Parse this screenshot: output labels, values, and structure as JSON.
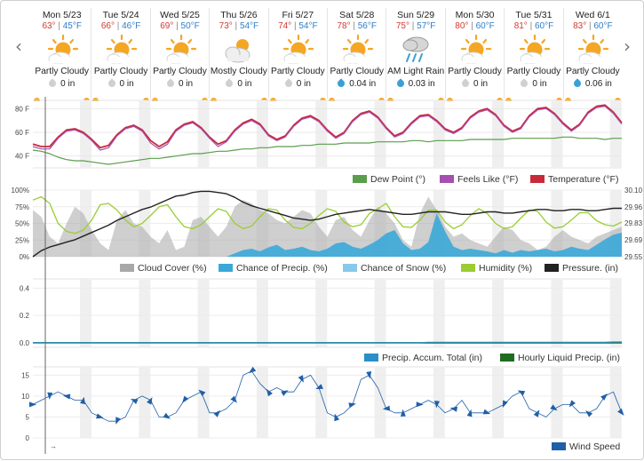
{
  "nav": {
    "prev_icon": "chevron-left-icon",
    "next_icon": "chevron-right-icon",
    "prev_glyph": "‹",
    "next_glyph": "›",
    "time_arrow": "→"
  },
  "days": [
    {
      "date": "Mon 5/23",
      "hi": "63°",
      "lo": "45°F",
      "icon": "partly-cloudy-icon",
      "cond": "Partly Cloudy",
      "precip": "0 in",
      "drop": "grey"
    },
    {
      "date": "Tue 5/24",
      "hi": "66°",
      "lo": "46°F",
      "icon": "partly-cloudy-icon",
      "cond": "Partly Cloudy",
      "precip": "0 in",
      "drop": "grey"
    },
    {
      "date": "Wed 5/25",
      "hi": "69°",
      "lo": "50°F",
      "icon": "partly-cloudy-icon",
      "cond": "Partly Cloudy",
      "precip": "0 in",
      "drop": "grey"
    },
    {
      "date": "Thu 5/26",
      "hi": "73°",
      "lo": "54°F",
      "icon": "mostly-cloudy-icon",
      "cond": "Mostly Cloudy",
      "precip": "0 in",
      "drop": "grey"
    },
    {
      "date": "Fri 5/27",
      "hi": "74°",
      "lo": "54°F",
      "icon": "partly-cloudy-icon",
      "cond": "Partly Cloudy",
      "precip": "0 in",
      "drop": "grey"
    },
    {
      "date": "Sat 5/28",
      "hi": "78°",
      "lo": "56°F",
      "icon": "partly-cloudy-icon",
      "cond": "Partly Cloudy",
      "precip": "0.04 in",
      "drop": "blue"
    },
    {
      "date": "Sun 5/29",
      "hi": "75°",
      "lo": "57°F",
      "icon": "rain-icon",
      "cond": "AM Light Rain",
      "precip": "0.03 in",
      "drop": "blue"
    },
    {
      "date": "Mon 5/30",
      "hi": "80°",
      "lo": "60°F",
      "icon": "partly-cloudy-icon",
      "cond": "Partly Cloudy",
      "precip": "0 in",
      "drop": "grey"
    },
    {
      "date": "Tue 5/31",
      "hi": "81°",
      "lo": "60°F",
      "icon": "partly-cloudy-icon",
      "cond": "Partly Cloudy",
      "precip": "0 in",
      "drop": "grey"
    },
    {
      "date": "Wed 6/1",
      "hi": "83°",
      "lo": "60°F",
      "icon": "partly-cloudy-icon",
      "cond": "Partly Cloudy",
      "precip": "0.06 in",
      "drop": "blue"
    }
  ],
  "colors": {
    "temperature": "#c92a3a",
    "feels_like": "#a64fb0",
    "dew_point": "#5a9e4a",
    "cloud_cover": "#a8a8a8",
    "precip_chance": "#3aa8d8",
    "snow_chance": "#88c8e8",
    "humidity": "#9acd32",
    "pressure": "#222222",
    "precip_total": "#2a8fc8",
    "hourly_liquid": "#1f6b1f",
    "wind": "#1f5fa8",
    "hi": "#d33a2c",
    "lo": "#2e7fc6"
  },
  "chart_data": [
    {
      "type": "line",
      "name": "temperature-panel",
      "yticks": [
        "80 F",
        "60 F",
        "40 F"
      ],
      "ytick_values": [
        80,
        60,
        40
      ],
      "ylim": [
        30,
        87
      ],
      "x_days": 10,
      "series": [
        {
          "name": "Temperature (°F)",
          "color_key": "temperature",
          "values": [
            50,
            48,
            48,
            56,
            62,
            63,
            60,
            54,
            47,
            49,
            58,
            64,
            66,
            62,
            53,
            48,
            52,
            62,
            67,
            69,
            64,
            56,
            50,
            53,
            62,
            68,
            71,
            67,
            58,
            54,
            57,
            66,
            72,
            74,
            70,
            62,
            56,
            60,
            70,
            76,
            78,
            73,
            64,
            57,
            60,
            68,
            74,
            75,
            70,
            63,
            60,
            64,
            73,
            78,
            80,
            75,
            66,
            61,
            64,
            74,
            80,
            81,
            76,
            68,
            62,
            67,
            77,
            82,
            83,
            77,
            68
          ]
        },
        {
          "name": "Feels Like (°F)",
          "color_key": "feels_like",
          "values": [
            48,
            46,
            46,
            55,
            61,
            62,
            59,
            53,
            45,
            47,
            57,
            63,
            65,
            61,
            51,
            46,
            50,
            61,
            66,
            68,
            63,
            55,
            48,
            52,
            61,
            67,
            70,
            66,
            57,
            53,
            56,
            65,
            71,
            73,
            69,
            61,
            55,
            59,
            69,
            75,
            77,
            72,
            63,
            56,
            59,
            67,
            73,
            74,
            69,
            62,
            59,
            63,
            72,
            77,
            79,
            74,
            65,
            60,
            63,
            73,
            79,
            80,
            75,
            67,
            61,
            66,
            76,
            81,
            82,
            76,
            67
          ]
        },
        {
          "name": "Dew Point (°)",
          "color_key": "dew_point",
          "values": [
            45,
            44,
            42,
            39,
            37,
            36,
            36,
            35,
            34,
            33,
            34,
            35,
            36,
            37,
            38,
            38,
            39,
            40,
            41,
            42,
            42,
            43,
            44,
            44,
            45,
            46,
            46,
            47,
            47,
            48,
            48,
            48,
            49,
            49,
            50,
            50,
            50,
            51,
            51,
            51,
            51,
            52,
            52,
            52,
            52,
            53,
            53,
            52,
            53,
            53,
            53,
            53,
            54,
            54,
            54,
            54,
            54,
            55,
            55,
            55,
            55,
            55,
            55,
            56,
            56,
            55,
            55,
            55,
            54,
            55,
            55
          ]
        }
      ],
      "legend": [
        "Dew Point (°)",
        "Feels Like (°F)",
        "Temperature (°F)"
      ]
    },
    {
      "type": "area",
      "name": "sky-panel",
      "yticks_left": [
        "100%",
        "75%",
        "50%",
        "25%",
        "0%"
      ],
      "ytick_left_values": [
        100,
        75,
        50,
        25,
        0
      ],
      "yticks_right": [
        "30.10",
        "29.96",
        "29.83",
        "29.69",
        "29.55"
      ],
      "ytick_right_values": [
        30.1,
        29.96,
        29.83,
        29.69,
        29.55
      ],
      "series": [
        {
          "name": "Cloud Cover (%)",
          "color_key": "cloud_cover",
          "axis": "left",
          "values": [
            70,
            60,
            30,
            20,
            50,
            75,
            65,
            40,
            20,
            10,
            55,
            70,
            50,
            45,
            30,
            20,
            40,
            10,
            15,
            55,
            60,
            45,
            30,
            45,
            75,
            85,
            80,
            70,
            65,
            55,
            50,
            60,
            70,
            65,
            45,
            30,
            55,
            60,
            40,
            30,
            55,
            75,
            65,
            50,
            25,
            15,
            65,
            90,
            70,
            45,
            30,
            35,
            25,
            20,
            15,
            30,
            45,
            40,
            25,
            20,
            10,
            15,
            30,
            40,
            30,
            25,
            20,
            30,
            35,
            40,
            45
          ]
        },
        {
          "name": "Chance of Precip. (%)",
          "color_key": "precip_chance",
          "axis": "left",
          "values": [
            0,
            0,
            0,
            0,
            0,
            0,
            0,
            0,
            0,
            0,
            0,
            0,
            0,
            0,
            0,
            0,
            0,
            0,
            0,
            0,
            0,
            0,
            0,
            0,
            5,
            10,
            12,
            8,
            14,
            18,
            10,
            12,
            15,
            10,
            8,
            12,
            20,
            22,
            15,
            12,
            18,
            25,
            35,
            40,
            20,
            10,
            12,
            22,
            65,
            38,
            15,
            10,
            12,
            10,
            8,
            5,
            10,
            6,
            10,
            8,
            10,
            12,
            8,
            10,
            15,
            12,
            10,
            18,
            26,
            33,
            36
          ]
        },
        {
          "name": "Chance of Snow (%)",
          "color_key": "snow_chance",
          "axis": "left",
          "values": []
        },
        {
          "name": "Humidity (%)",
          "color_key": "humidity",
          "axis": "left",
          "values": [
            85,
            90,
            80,
            50,
            38,
            35,
            40,
            55,
            78,
            80,
            70,
            55,
            45,
            50,
            62,
            75,
            78,
            60,
            45,
            42,
            48,
            60,
            72,
            68,
            50,
            42,
            46,
            60,
            72,
            70,
            55,
            44,
            42,
            50,
            62,
            72,
            68,
            52,
            45,
            48,
            65,
            72,
            80,
            60,
            45,
            44,
            55,
            70,
            70,
            52,
            42,
            48,
            62,
            72,
            65,
            50,
            42,
            45,
            58,
            70,
            68,
            52,
            43,
            45,
            55,
            66,
            66,
            54,
            48,
            46,
            52
          ]
        },
        {
          "name": "Pressure. (in)",
          "color_key": "pressure",
          "axis": "right",
          "values": [
            29.55,
            29.6,
            29.63,
            29.65,
            29.67,
            29.69,
            29.72,
            29.75,
            29.78,
            29.81,
            29.85,
            29.88,
            29.91,
            29.94,
            29.96,
            29.99,
            30.02,
            30.05,
            30.06,
            30.08,
            30.09,
            30.09,
            30.08,
            30.07,
            30.04,
            30.0,
            29.97,
            29.95,
            29.93,
            29.91,
            29.89,
            29.87,
            29.86,
            29.85,
            29.86,
            29.88,
            29.9,
            29.91,
            29.92,
            29.93,
            29.94,
            29.93,
            29.92,
            29.91,
            29.9,
            29.9,
            29.91,
            29.92,
            29.92,
            29.92,
            29.91,
            29.9,
            29.9,
            29.91,
            29.92,
            29.92,
            29.91,
            29.91,
            29.92,
            29.93,
            29.94,
            29.94,
            29.93,
            29.93,
            29.94,
            29.94,
            29.93,
            29.93,
            29.94,
            29.95,
            29.95
          ]
        }
      ],
      "legend": [
        "Cloud Cover (%)",
        "Chance of Precip. (%)",
        "Chance of Snow (%)",
        "Humidity (%)",
        "Pressure. (in)"
      ]
    },
    {
      "type": "line",
      "name": "precip-panel",
      "yticks": [
        "0.4",
        "0.2",
        "0.0"
      ],
      "ytick_values": [
        0.4,
        0.2,
        0.0
      ],
      "ylim": [
        -0.02,
        0.48
      ],
      "series": [
        {
          "name": "Precip. Accum. Total (in)",
          "color_key": "precip_total",
          "values": [
            0,
            0,
            0,
            0,
            0,
            0,
            0,
            0,
            0,
            0,
            0,
            0,
            0,
            0,
            0,
            0,
            0,
            0,
            0,
            0,
            0,
            0,
            0,
            0,
            0,
            0,
            0,
            0,
            0,
            0,
            0,
            0,
            0,
            0,
            0,
            0,
            0,
            0,
            0,
            0,
            0,
            0,
            0,
            0,
            0,
            0,
            0,
            0.004,
            0.004,
            0.004,
            0.004,
            0.004,
            0.004,
            0.004,
            0.004,
            0.004,
            0.004,
            0.004,
            0.004,
            0.004,
            0.004,
            0.004,
            0.004,
            0.004,
            0.004,
            0.004,
            0.004,
            0.004,
            0.004,
            0.006,
            0.006
          ]
        },
        {
          "name": "Hourly Liquid Precip. (in)",
          "color_key": "hourly_liquid",
          "values": [
            0,
            0,
            0,
            0,
            0,
            0,
            0,
            0,
            0,
            0,
            0,
            0,
            0,
            0,
            0,
            0,
            0,
            0,
            0,
            0,
            0,
            0,
            0,
            0,
            0,
            0,
            0,
            0,
            0,
            0,
            0,
            0,
            0,
            0,
            0,
            0,
            0,
            0,
            0,
            0,
            0,
            0,
            0,
            0,
            0,
            0,
            0,
            0,
            0,
            0,
            0,
            0,
            0,
            0,
            0,
            0,
            0,
            0,
            0,
            0,
            0,
            0,
            0,
            0,
            0,
            0,
            0,
            0,
            0,
            0,
            0
          ]
        }
      ],
      "legend": [
        "Precip. Accum. Total (in)",
        "Hourly Liquid Precip. (in)"
      ]
    },
    {
      "type": "line",
      "name": "wind-panel",
      "yticks": [
        "15",
        "10",
        "5",
        "0"
      ],
      "ytick_values": [
        15,
        10,
        5,
        0
      ],
      "ylim": [
        0,
        17
      ],
      "series": [
        {
          "name": "Wind Speed",
          "color_key": "wind",
          "values": [
            8,
            9,
            10,
            11,
            10,
            9,
            9,
            6,
            5,
            4,
            4,
            5,
            9,
            10,
            9,
            5,
            5,
            6,
            9,
            10,
            11,
            6,
            6,
            7,
            9,
            15,
            16,
            13,
            11,
            12,
            11,
            11,
            14,
            15,
            12,
            6,
            5,
            6,
            8,
            14,
            15,
            12,
            7,
            6,
            6,
            7,
            8,
            9,
            8,
            6,
            7,
            9,
            6,
            6,
            6,
            7,
            8,
            10,
            11,
            7,
            6,
            5,
            7,
            8,
            8,
            6,
            6,
            7,
            10,
            11,
            6
          ]
        }
      ],
      "arrows": [
        11,
        23,
        28,
        45,
        52,
        58,
        64,
        67,
        70
      ],
      "legend": [
        "Wind Speed"
      ]
    }
  ]
}
